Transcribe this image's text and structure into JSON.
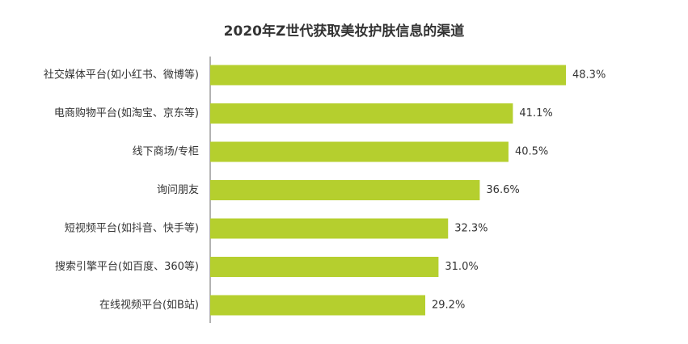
{
  "chart_data": {
    "type": "bar",
    "orientation": "horizontal",
    "title": "2020年Z世代获取美妆护肤信息的渠道",
    "categories": [
      "社交媒体平台(如小红书、微博等)",
      "电商购物平台(如淘宝、京东等)",
      "线下商场/专柜",
      "询问朋友",
      "短视频平台(如抖音、快手等)",
      "搜索引擎平台(如百度、360等)",
      "在线视频平台(如B站)"
    ],
    "values": [
      48.3,
      41.1,
      40.5,
      36.6,
      32.3,
      31.0,
      29.2
    ],
    "value_labels": [
      "48.3%",
      "41.1%",
      "40.5%",
      "36.6%",
      "32.3%",
      "31.0%",
      "29.2%"
    ],
    "xlim": [
      0,
      50
    ],
    "bar_color": "#b5cf2e",
    "axis_color": "#666666",
    "grid": false,
    "legend": "none"
  }
}
